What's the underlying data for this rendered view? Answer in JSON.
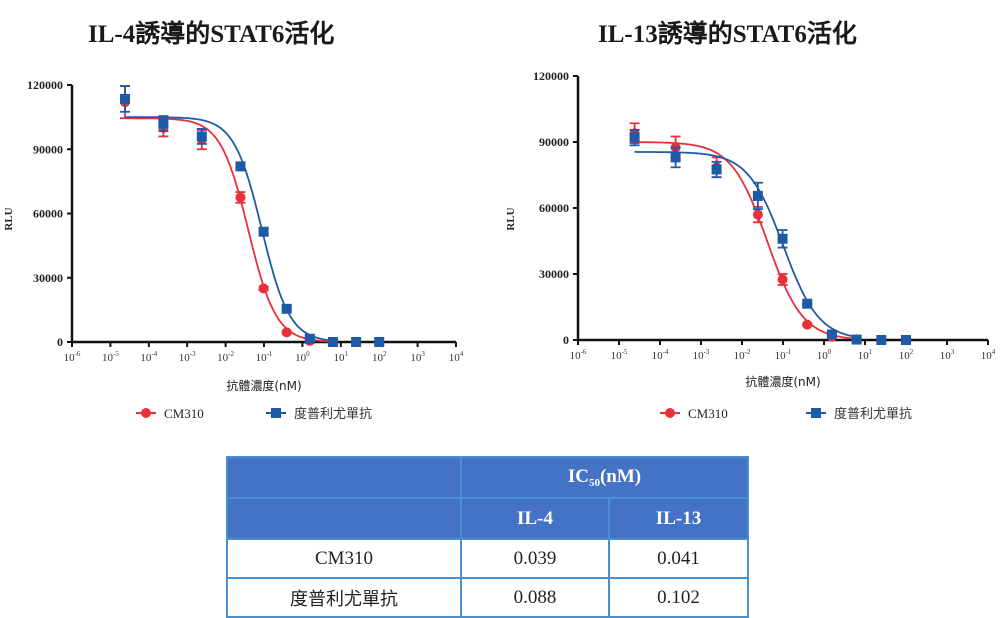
{
  "chart_data": [
    {
      "type": "scatter",
      "title": "IL-4誘導的STAT6活化",
      "xlabel": "抗體濃度(nM)",
      "ylabel": "RLU",
      "xscale": "log",
      "xlim": [
        1e-06,
        10000
      ],
      "ylim": [
        0,
        120000
      ],
      "yticks": [
        "0",
        "30000",
        "60000",
        "90000",
        "120000"
      ],
      "ytick_values": [
        0,
        30000,
        60000,
        90000,
        120000
      ],
      "xticks": [
        {
          "base": "10",
          "exp": "-6"
        },
        {
          "base": "10",
          "exp": "-5"
        },
        {
          "base": "10",
          "exp": "-4"
        },
        {
          "base": "10",
          "exp": "-3"
        },
        {
          "base": "10",
          "exp": "-2"
        },
        {
          "base": "10",
          "exp": "-1"
        },
        {
          "base": "10",
          "exp": "0"
        },
        {
          "base": "10",
          "exp": "1"
        },
        {
          "base": "10",
          "exp": "2"
        },
        {
          "base": "10",
          "exp": "3"
        },
        {
          "base": "10",
          "exp": "4"
        }
      ],
      "x": [
        2.4e-05,
        0.00024,
        0.0024,
        0.0244,
        0.0977,
        0.39,
        1.56,
        6.25,
        25,
        100
      ],
      "legend_position": "bottom",
      "series": [
        {
          "name": "CM310",
          "marker": "circle",
          "color": "#e8303a",
          "values": [
            112000,
            100000,
            94500,
            67500,
            25000,
            4500,
            500,
            0,
            0,
            0
          ],
          "errors": [
            7500,
            4000,
            4500,
            2500,
            800,
            500,
            300,
            0,
            0,
            0
          ],
          "fit": {
            "top": 104500,
            "bottom": 0,
            "ic50": 0.039,
            "hill": 1.2
          }
        },
        {
          "name": "度普利尤單抗",
          "marker": "square",
          "color": "#1f5aa6",
          "values": [
            113500,
            102000,
            96000,
            82000,
            51500,
            15500,
            1500,
            0,
            0,
            0
          ],
          "errors": [
            6000,
            3500,
            3500,
            1500,
            1500,
            800,
            300,
            0,
            0,
            0
          ],
          "fit": {
            "top": 105000,
            "bottom": 0,
            "ic50": 0.088,
            "hill": 1.2
          }
        }
      ]
    },
    {
      "type": "scatter",
      "title": "IL-13誘導的STAT6活化",
      "xlabel": "抗體濃度(nM)",
      "ylabel": "RLU",
      "xscale": "log",
      "xlim": [
        1e-06,
        10000
      ],
      "ylim": [
        0,
        120000
      ],
      "yticks": [
        "0",
        "30000",
        "60000",
        "90000",
        "120000"
      ],
      "ytick_values": [
        0,
        30000,
        60000,
        90000,
        120000
      ],
      "xticks": [
        {
          "base": "10",
          "exp": "-6"
        },
        {
          "base": "10",
          "exp": "-5"
        },
        {
          "base": "10",
          "exp": "-4"
        },
        {
          "base": "10",
          "exp": "-3"
        },
        {
          "base": "10",
          "exp": "-2"
        },
        {
          "base": "10",
          "exp": "-1"
        },
        {
          "base": "10",
          "exp": "0"
        },
        {
          "base": "10",
          "exp": "1"
        },
        {
          "base": "10",
          "exp": "2"
        },
        {
          "base": "10",
          "exp": "3"
        },
        {
          "base": "10",
          "exp": "4"
        }
      ],
      "x": [
        2.4e-05,
        0.00024,
        0.0024,
        0.0244,
        0.0977,
        0.39,
        1.56,
        6.25,
        25,
        100
      ],
      "legend_position": "bottom",
      "series": [
        {
          "name": "CM310",
          "marker": "circle",
          "color": "#e8303a",
          "values": [
            94000,
            87500,
            78500,
            57000,
            27500,
            7000,
            1500,
            200,
            0,
            0
          ],
          "errors": [
            4500,
            5000,
            4500,
            3500,
            2500,
            500,
            300,
            0,
            0,
            0
          ],
          "fit": {
            "top": 90000,
            "bottom": 0,
            "ic50": 0.041,
            "hill": 1.0
          }
        },
        {
          "name": "度普利尤單抗",
          "marker": "square",
          "color": "#1f5aa6",
          "values": [
            92000,
            83000,
            77500,
            65500,
            46000,
            16500,
            2500,
            200,
            0,
            0
          ],
          "errors": [
            3500,
            4500,
            3500,
            6000,
            4000,
            500,
            300,
            0,
            0,
            0
          ],
          "fit": {
            "top": 85500,
            "bottom": 0,
            "ic50": 0.102,
            "hill": 1.0
          }
        }
      ]
    }
  ],
  "table": {
    "header_group": "IC",
    "header_group_sub": "50",
    "header_group_unit": "(nM)",
    "columns": [
      "IL-4",
      "IL-13"
    ],
    "rows": [
      {
        "name": "CM310",
        "values": [
          "0.039",
          "0.041"
        ]
      },
      {
        "name": "度普利尤單抗",
        "values": [
          "0.088",
          "0.102"
        ]
      }
    ]
  }
}
